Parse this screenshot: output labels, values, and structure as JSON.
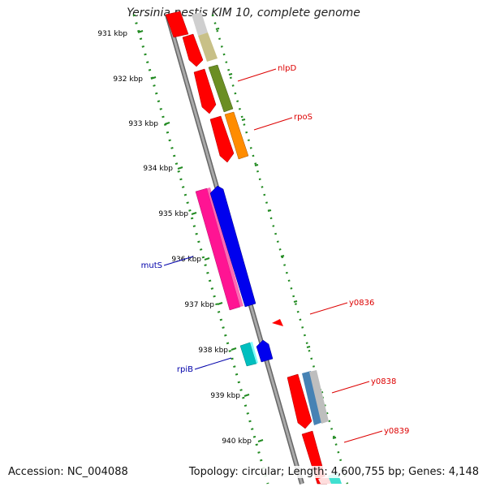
{
  "title": "Yersinia pestis KIM 10, complete genome",
  "footer": {
    "accession": "Accession: NC_004088",
    "topology": "Topology: circular; Length: 4,600,755 bp; Genes: 4,148"
  },
  "colors": {
    "backbone": "#808080",
    "tick_ring": "#228b22",
    "forward_label": "#dd0000",
    "reverse_label": "#0000aa"
  },
  "kbp_scale": {
    "unit": "kbp",
    "labels": [
      "931 kbp",
      "932 kbp",
      "933 kbp",
      "934 kbp",
      "935 kbp",
      "936 kbp",
      "937 kbp",
      "938 kbp",
      "939 kbp",
      "940 kbp"
    ]
  },
  "genes": [
    {
      "name": "nlpD",
      "strand": "forward",
      "color": "#dd0000"
    },
    {
      "name": "rpoS",
      "strand": "forward",
      "color": "#dd0000"
    },
    {
      "name": "mutS",
      "strand": "reverse",
      "color": "#0000aa"
    },
    {
      "name": "y0836",
      "strand": "forward",
      "color": "#dd0000"
    },
    {
      "name": "rpiB",
      "strand": "reverse",
      "color": "#0000aa"
    },
    {
      "name": "y0838",
      "strand": "forward",
      "color": "#dd0000"
    },
    {
      "name": "y0839",
      "strand": "forward",
      "color": "#dd0000"
    }
  ]
}
